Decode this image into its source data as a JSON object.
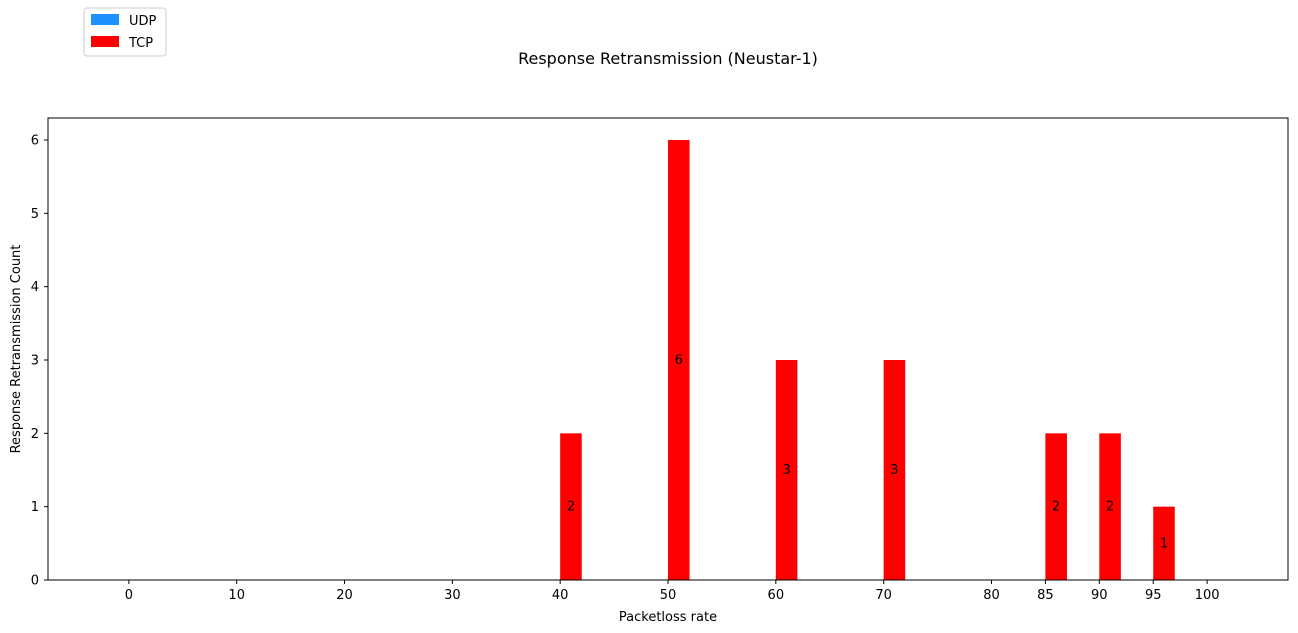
{
  "chart_data": {
    "type": "bar",
    "title": "Response Retransmission (Neustar-1)",
    "xlabel": "Packetloss rate",
    "ylabel": "Response Retransmission Count",
    "x_ticks": [
      0,
      10,
      20,
      30,
      40,
      50,
      60,
      70,
      80,
      85,
      90,
      95,
      100
    ],
    "y_ticks": [
      0,
      1,
      2,
      3,
      4,
      5,
      6
    ],
    "ylim": [
      0,
      6.3
    ],
    "xlim": [
      -7.5,
      107.5
    ],
    "grid": false,
    "legend_placement": "top-left",
    "series": [
      {
        "name": "UDP",
        "color": "#1e90ff",
        "x": [
          0,
          10,
          20,
          30,
          40,
          50,
          60,
          70,
          80,
          85,
          90,
          95,
          100
        ],
        "values": [
          0,
          0,
          0,
          0,
          0,
          0,
          0,
          0,
          0,
          0,
          0,
          0,
          0
        ]
      },
      {
        "name": "TCP",
        "color": "#ff0000",
        "x": [
          40,
          50,
          60,
          70,
          85,
          90,
          95
        ],
        "values": [
          2,
          6,
          3,
          3,
          2,
          2,
          1
        ],
        "labels": [
          "2",
          "6",
          "3",
          "3",
          "2",
          "2",
          "1"
        ]
      }
    ]
  }
}
